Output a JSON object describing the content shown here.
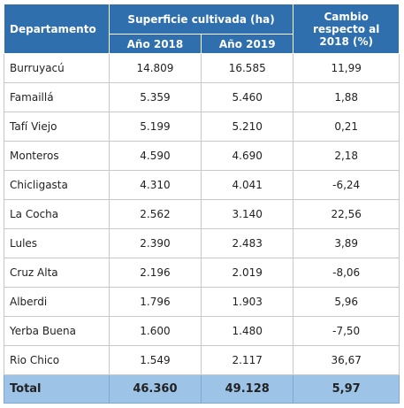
{
  "header": {
    "department": "Departamento",
    "surface": "Superficie cultivada (ha)",
    "year_2018": "Año 2018",
    "year_2019": "Año 2019",
    "change": "Cambio respecto al 2018 (%)"
  },
  "table": {
    "rows": [
      [
        "Burruyacú",
        "14.809",
        "16.585",
        "11,99"
      ],
      [
        "Famaillá",
        "5.359",
        "5.460",
        "1,88"
      ],
      [
        "Tafí Viejo",
        "5.199",
        "5.210",
        "0,21"
      ],
      [
        "Monteros",
        "4.590",
        "4.690",
        "2,18"
      ],
      [
        "Chicligasta",
        "4.310",
        "4.041",
        "-6,24"
      ],
      [
        "La Cocha",
        "2.562",
        "3.140",
        "22,56"
      ],
      [
        "Lules",
        "2.390",
        "2.483",
        "3,89"
      ],
      [
        "Cruz Alta",
        "2.196",
        "2.019",
        "-8,06"
      ],
      [
        "Alberdi",
        "1.796",
        "1.903",
        "5,96"
      ],
      [
        "Yerba Buena",
        "1.600",
        "1.480",
        "-7,50"
      ],
      [
        "Rio Chico",
        "1.549",
        "2.117",
        "36,67"
      ]
    ]
  },
  "total": [
    "Total",
    "46.360",
    "49.128",
    "5,97"
  ]
}
